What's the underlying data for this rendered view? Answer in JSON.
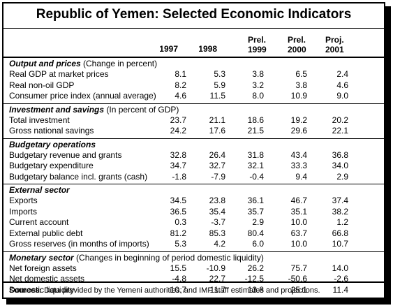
{
  "title": "Republic of Yemen: Selected Economic Indicators",
  "columns": [
    {
      "line1": "",
      "line2": "1997"
    },
    {
      "line1": "",
      "line2": "1998"
    },
    {
      "line1": "Prel.",
      "line2": "1999"
    },
    {
      "line1": "Prel.",
      "line2": "2000"
    },
    {
      "line1": "Proj.",
      "line2": "2001"
    }
  ],
  "sections": [
    {
      "title": "Output and prices",
      "note": " (Change in percent)",
      "rows": [
        {
          "label": "Real GDP at market prices",
          "values": [
            "8.1",
            "5.3",
            "3.8",
            "6.5",
            "2.4"
          ]
        },
        {
          "label": "Real non-oil GDP",
          "values": [
            "8.2",
            "5.9",
            "3.2",
            "3.8",
            "4.6"
          ]
        },
        {
          "label": "Consumer price index (annual average)",
          "values": [
            "4.6",
            "11.5",
            "8.0",
            "10.9",
            "9.0"
          ]
        }
      ]
    },
    {
      "title": "Investment and savings",
      "note": " (In percent of GDP)",
      "rows": [
        {
          "label": "Total investment",
          "values": [
            "23.7",
            "21.1",
            "18.6",
            "19.2",
            "20.2"
          ]
        },
        {
          "label": "Gross national savings",
          "values": [
            "24.2",
            "17.6",
            "21.5",
            "29.6",
            "22.1"
          ]
        }
      ]
    },
    {
      "title": "Budgetary operations",
      "note": "",
      "rows": [
        {
          "label": "Budgetary revenue and grants",
          "values": [
            "32.8",
            "26.4",
            "31.8",
            "43.4",
            "36.8"
          ]
        },
        {
          "label": "Budgetary expenditure",
          "values": [
            "34.7",
            "32.7",
            "32.1",
            "33.3",
            "34.0"
          ]
        },
        {
          "label": "Budgetary balance incl. grants (cash)",
          "values": [
            "-1.8",
            "-7.9",
            "-0.4",
            "9.4",
            "2.9"
          ]
        }
      ]
    },
    {
      "title": "External sector",
      "note": "",
      "rows": [
        {
          "label": "Exports",
          "values": [
            "34.5",
            "23.8",
            "36.1",
            "46.7",
            "37.4"
          ]
        },
        {
          "label": "Imports",
          "values": [
            "36.5",
            "35.4",
            "35.7",
            "35.1",
            "38.2"
          ]
        },
        {
          "label": "Current account",
          "values": [
            "0.3",
            "-3.7",
            "2.9",
            "10.0",
            "1.2"
          ]
        },
        {
          "label": "External public debt",
          "values": [
            "81.2",
            "85.3",
            "80.4",
            "63.7",
            "66.8"
          ]
        },
        {
          "label": "Gross reserves (in months of imports)",
          "values": [
            "5.3",
            "4.2",
            "6.0",
            "10.0",
            "10.7"
          ]
        }
      ]
    },
    {
      "title": "Monetary sector",
      "note": " (Changes in beginning of period domestic liquidity)",
      "rows": [
        {
          "label": "Net foreign assets",
          "values": [
            "15.5",
            "-10.9",
            "26.2",
            "75.7",
            "14.0"
          ]
        },
        {
          "label": "Net domestic assets",
          "values": [
            "-4.8",
            "22.7",
            "-12.5",
            "-50.6",
            "-2.6"
          ]
        },
        {
          "label": "Domestic liquidity",
          "values": [
            "10.7",
            "11.7",
            "13.8",
            "25.1",
            "11.4"
          ]
        }
      ]
    }
  ],
  "footer": {
    "label": "Sources:",
    "text": " Data provided by the Yemeni authorities; and IMF staff estimates and projections."
  }
}
